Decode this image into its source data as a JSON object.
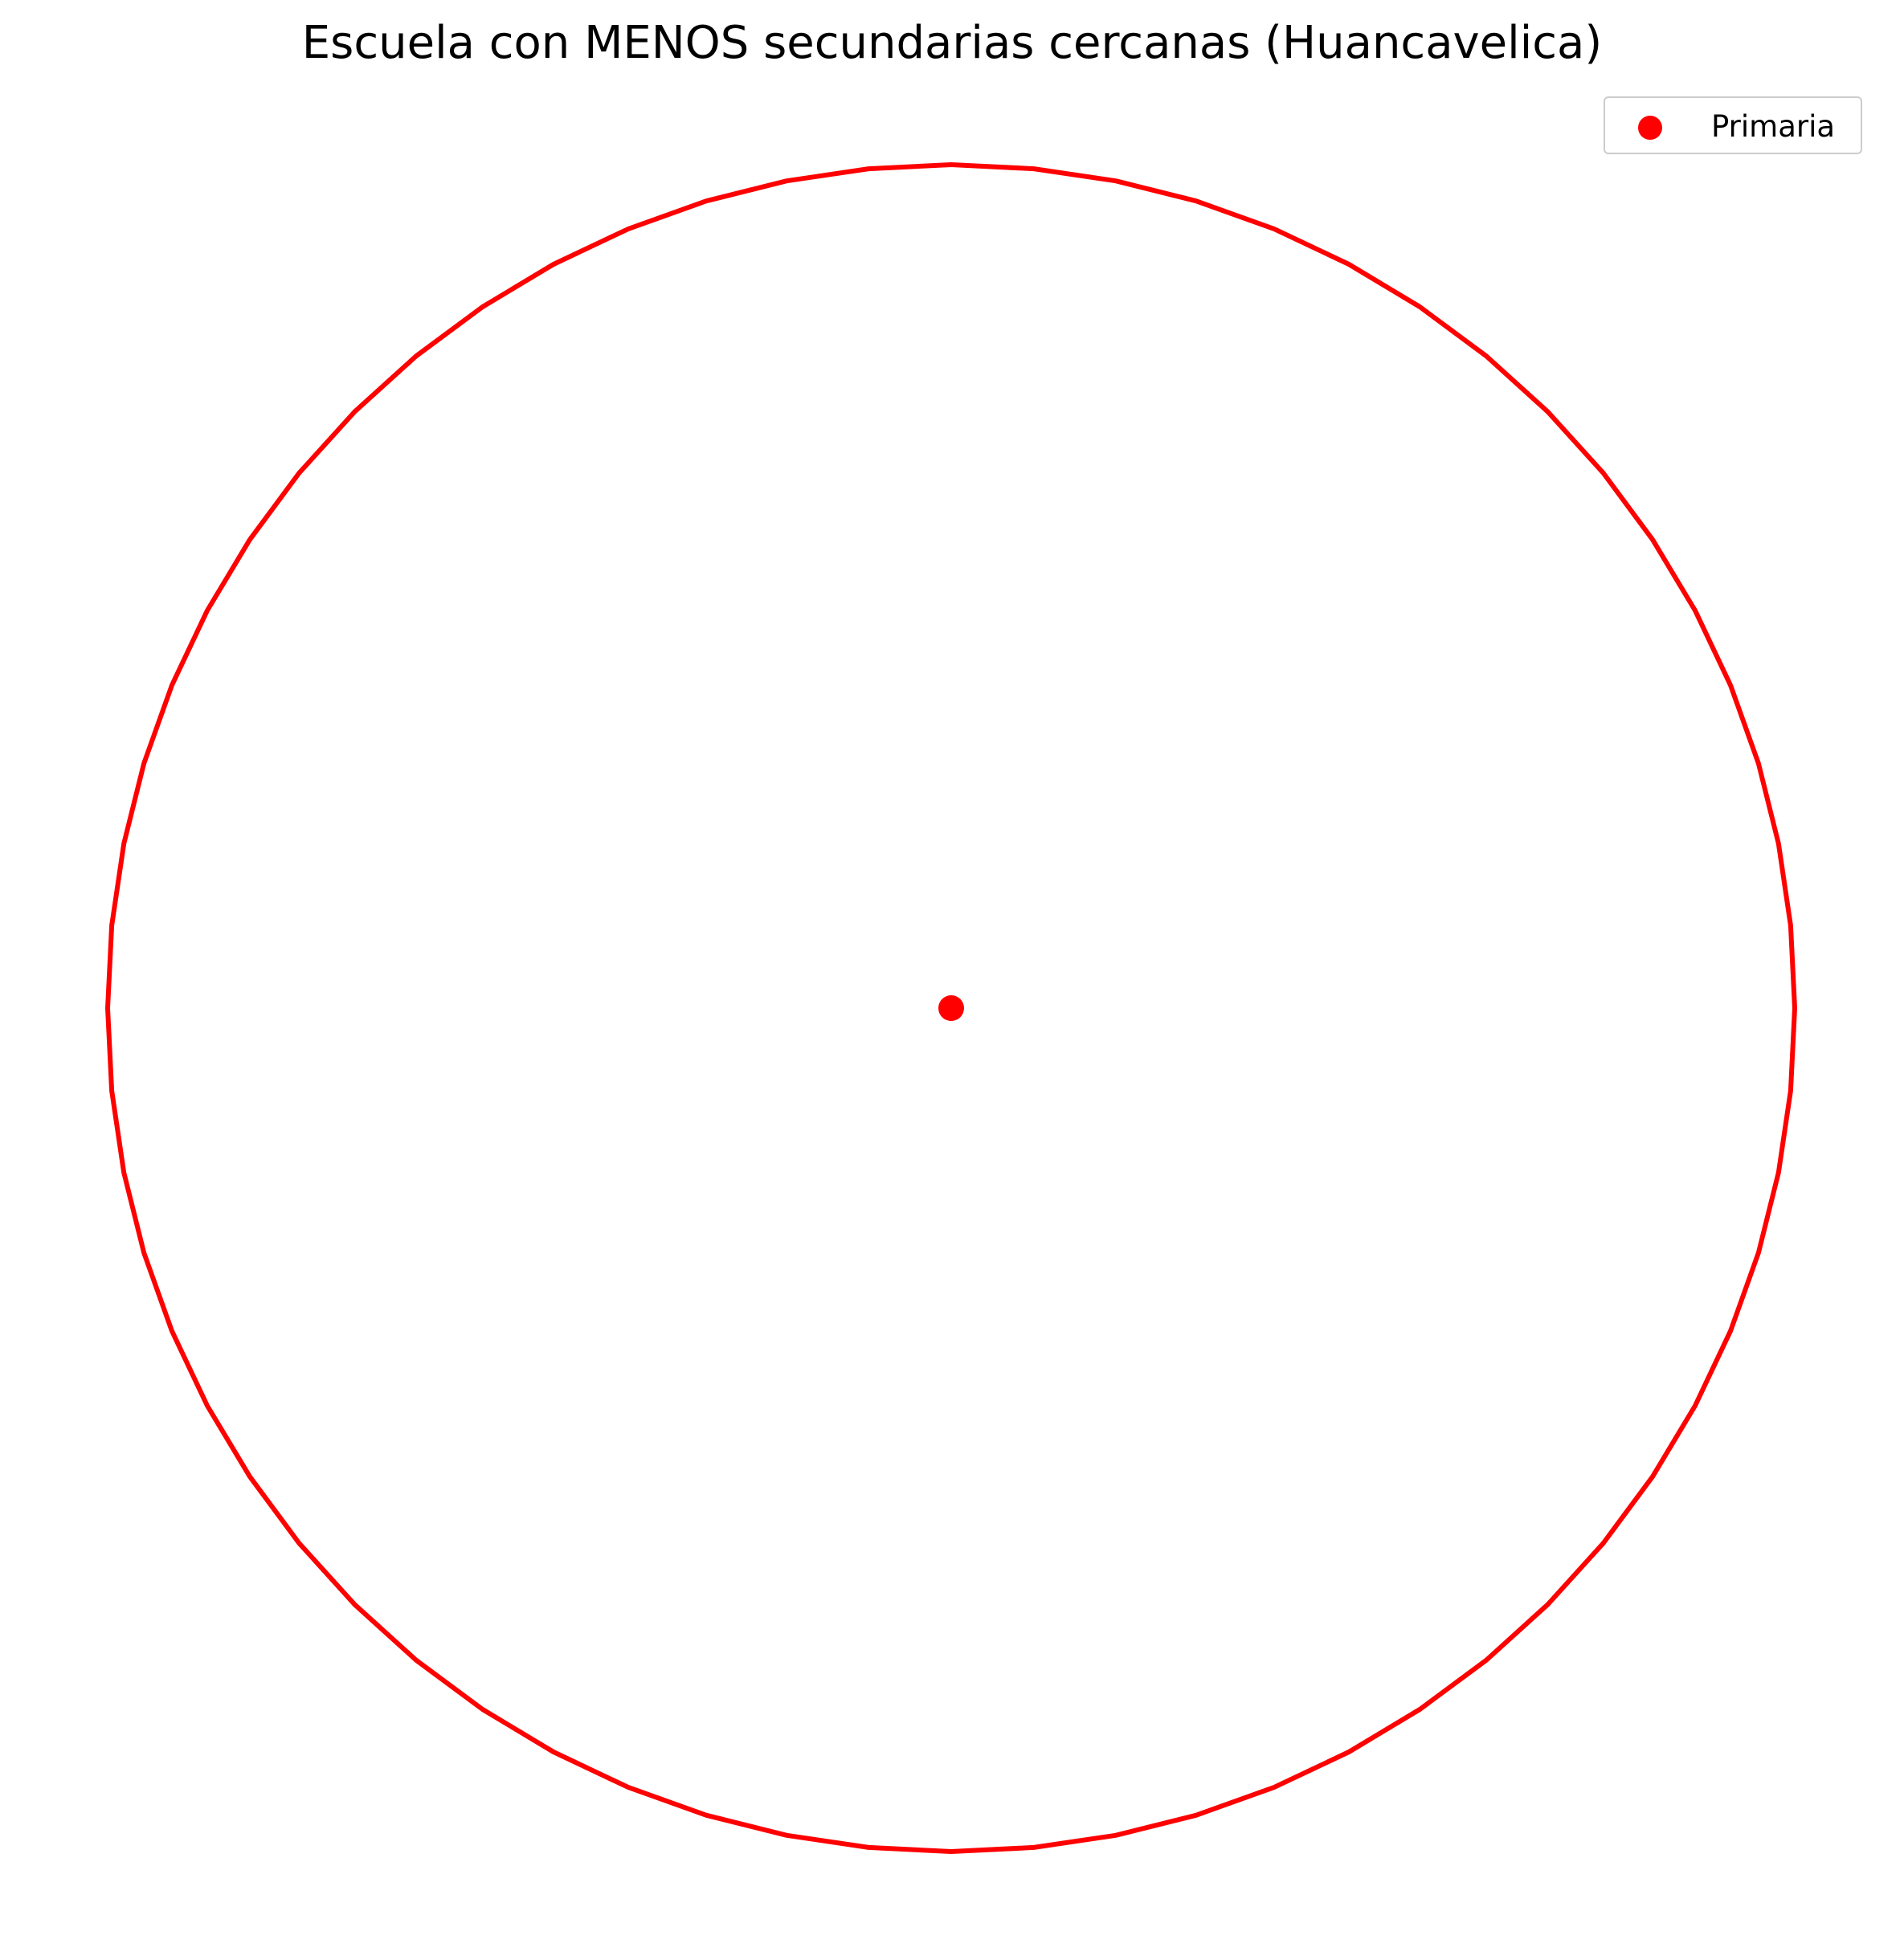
{
  "chart_data": {
    "type": "scatter",
    "title": "Escuela con MENOS secundarias cercanas (Huancavelica)",
    "xlabel": "",
    "ylabel": "",
    "axes": "off",
    "grid": false,
    "legend_position": "top-right",
    "series": [
      {
        "name": "Primaria",
        "color": "#ff0000",
        "marker": "circle",
        "points": [
          {
            "x": 0,
            "y": 0
          }
        ]
      }
    ],
    "buffer_circle": {
      "color": "#ff0000",
      "center": {
        "x": 0,
        "y": 0
      },
      "radius": 1,
      "segments": 64
    }
  }
}
